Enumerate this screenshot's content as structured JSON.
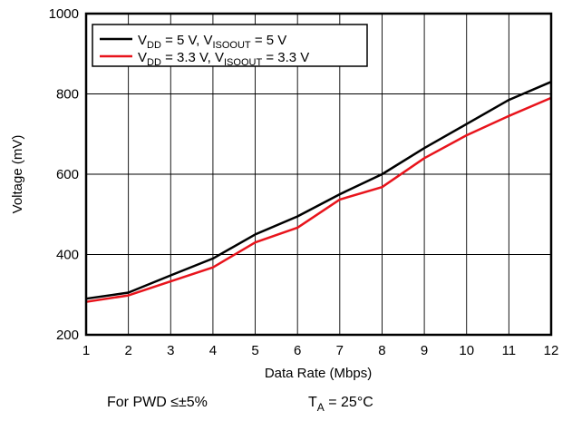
{
  "chart_data": {
    "type": "line",
    "xlabel": "Data Rate (Mbps)",
    "ylabel": "Voltage (mV)",
    "xlim": [
      1,
      12
    ],
    "ylim": [
      200,
      1000
    ],
    "x_ticks": [
      "1",
      "2",
      "3",
      "4",
      "5",
      "6",
      "7",
      "8",
      "9",
      "10",
      "11",
      "12"
    ],
    "y_ticks": [
      "200",
      "400",
      "600",
      "800",
      "1000"
    ],
    "grid": true,
    "legend_position": "top-left",
    "series": [
      {
        "name_parts": {
          "a": "V",
          "a_sub": "DD",
          "b": " = 5 V, V",
          "b_sub": "ISOOUT",
          "c": " = 5 V"
        },
        "color": "#000000",
        "x": [
          1,
          2,
          3,
          4,
          5,
          6,
          7,
          8,
          9,
          10,
          11,
          12
        ],
        "y": [
          290,
          305,
          348,
          390,
          450,
          495,
          550,
          600,
          665,
          725,
          785,
          830
        ]
      },
      {
        "name_parts": {
          "a": "V",
          "a_sub": "DD",
          "b": " = 3.3 V, V",
          "b_sub": "ISOOUT",
          "c": " = 3.3 V"
        },
        "color": "#e8141c",
        "x": [
          1,
          2,
          3,
          4,
          5,
          6,
          7,
          8,
          9,
          10,
          11,
          12
        ],
        "y": [
          282,
          298,
          333,
          368,
          430,
          467,
          537,
          568,
          640,
          697,
          745,
          790
        ]
      }
    ]
  },
  "footer": {
    "left_note": "For PWD ≤±5%",
    "ta_symbol": "T",
    "ta_sub": "A",
    "ta_value": " = 25°C"
  }
}
